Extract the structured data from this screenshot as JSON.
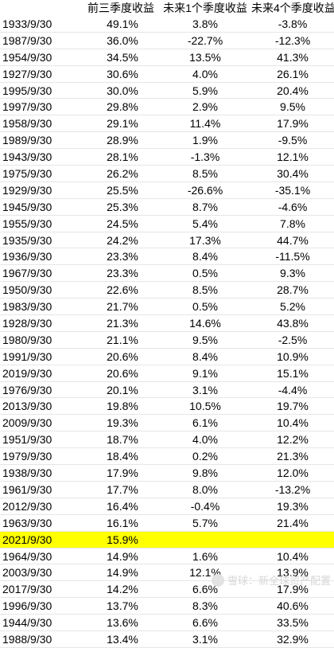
{
  "header": {
    "col0": "",
    "col1": "前三季度收益",
    "col2": "未来1个季度收益",
    "col3": "未来4个季度收益"
  },
  "rows": [
    {
      "date": "1933/9/30",
      "q3": "49.1%",
      "next1": "3.8%",
      "next4": "-3.8%"
    },
    {
      "date": "1987/9/30",
      "q3": "36.0%",
      "next1": "-22.7%",
      "next4": "-12.3%"
    },
    {
      "date": "1954/9/30",
      "q3": "34.5%",
      "next1": "13.5%",
      "next4": "41.3%"
    },
    {
      "date": "1927/9/30",
      "q3": "30.6%",
      "next1": "4.0%",
      "next4": "26.1%"
    },
    {
      "date": "1995/9/30",
      "q3": "30.0%",
      "next1": "5.9%",
      "next4": "20.4%"
    },
    {
      "date": "1997/9/30",
      "q3": "29.8%",
      "next1": "2.9%",
      "next4": "9.5%"
    },
    {
      "date": "1958/9/30",
      "q3": "29.1%",
      "next1": "11.4%",
      "next4": "17.9%"
    },
    {
      "date": "1989/9/30",
      "q3": "28.9%",
      "next1": "1.9%",
      "next4": "-9.5%"
    },
    {
      "date": "1943/9/30",
      "q3": "28.1%",
      "next1": "-1.3%",
      "next4": "12.1%"
    },
    {
      "date": "1975/9/30",
      "q3": "26.2%",
      "next1": "8.5%",
      "next4": "30.4%"
    },
    {
      "date": "1929/9/30",
      "q3": "25.5%",
      "next1": "-26.6%",
      "next4": "-35.1%"
    },
    {
      "date": "1945/9/30",
      "q3": "25.3%",
      "next1": "8.7%",
      "next4": "-4.6%"
    },
    {
      "date": "1955/9/30",
      "q3": "24.5%",
      "next1": "5.4%",
      "next4": "7.8%"
    },
    {
      "date": "1935/9/30",
      "q3": "24.2%",
      "next1": "17.3%",
      "next4": "44.7%"
    },
    {
      "date": "1936/9/30",
      "q3": "23.3%",
      "next1": "8.4%",
      "next4": "-11.5%"
    },
    {
      "date": "1967/9/30",
      "q3": "23.3%",
      "next1": "0.5%",
      "next4": "9.3%"
    },
    {
      "date": "1950/9/30",
      "q3": "22.6%",
      "next1": "8.5%",
      "next4": "28.7%"
    },
    {
      "date": "1983/9/30",
      "q3": "21.7%",
      "next1": "0.5%",
      "next4": "5.2%"
    },
    {
      "date": "1928/9/30",
      "q3": "21.3%",
      "next1": "14.6%",
      "next4": "43.8%"
    },
    {
      "date": "1980/9/30",
      "q3": "21.1%",
      "next1": "9.5%",
      "next4": "-2.5%"
    },
    {
      "date": "1991/9/30",
      "q3": "20.6%",
      "next1": "8.4%",
      "next4": "10.9%"
    },
    {
      "date": "2019/9/30",
      "q3": "20.6%",
      "next1": "9.1%",
      "next4": "15.1%"
    },
    {
      "date": "1976/9/30",
      "q3": "20.1%",
      "next1": "3.1%",
      "next4": "-4.4%"
    },
    {
      "date": "2013/9/30",
      "q3": "19.8%",
      "next1": "10.5%",
      "next4": "19.7%"
    },
    {
      "date": "2009/9/30",
      "q3": "19.3%",
      "next1": "6.1%",
      "next4": "10.4%"
    },
    {
      "date": "1951/9/30",
      "q3": "18.7%",
      "next1": "4.0%",
      "next4": "12.2%"
    },
    {
      "date": "1979/9/30",
      "q3": "18.4%",
      "next1": "0.2%",
      "next4": "21.3%"
    },
    {
      "date": "1938/9/30",
      "q3": "17.9%",
      "next1": "9.8%",
      "next4": "12.0%"
    },
    {
      "date": "1961/9/30",
      "q3": "17.7%",
      "next1": "8.0%",
      "next4": "-13.2%"
    },
    {
      "date": "2012/9/30",
      "q3": "16.4%",
      "next1": "-0.4%",
      "next4": "19.3%"
    },
    {
      "date": "1963/9/30",
      "q3": "16.1%",
      "next1": "5.7%",
      "next4": "21.4%"
    },
    {
      "date": "2021/9/30",
      "q3": "15.9%",
      "next1": "",
      "next4": "",
      "highlight": true
    },
    {
      "date": "1964/9/30",
      "q3": "14.9%",
      "next1": "1.6%",
      "next4": "10.4%"
    },
    {
      "date": "2003/9/30",
      "q3": "14.9%",
      "next1": "12.1%",
      "next4": "13.9%"
    },
    {
      "date": "2017/9/30",
      "q3": "14.2%",
      "next1": "6.6%",
      "next4": "17.9%"
    },
    {
      "date": "1996/9/30",
      "q3": "13.7%",
      "next1": "8.3%",
      "next4": "40.6%"
    },
    {
      "date": "1944/9/30",
      "q3": "13.6%",
      "next1": "6.6%",
      "next4": "33.5%"
    },
    {
      "date": "1988/9/30",
      "q3": "13.4%",
      "next1": "3.1%",
      "next4": "32.9%"
    }
  ],
  "watermark": {
    "text": "雪球：新全球资产配置",
    "icon": "snowball-logo-icon"
  },
  "colors": {
    "highlight": "#ffff00",
    "watermark": "#d7d7d7"
  }
}
